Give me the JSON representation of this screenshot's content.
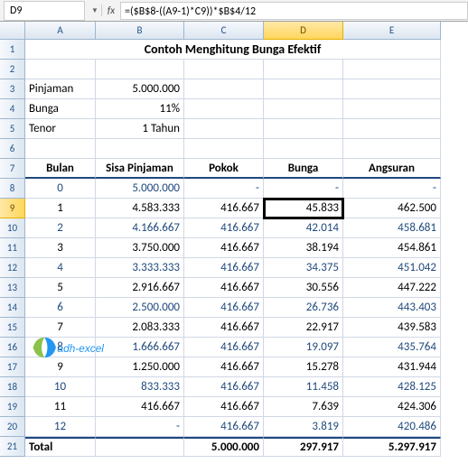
{
  "formula_bar": {
    "cell_ref": "D9",
    "fx_label": "fx",
    "formula": "=($B$8-((A9-1)*C9))*$B$4/12"
  },
  "column_headers": [
    "A",
    "B",
    "C",
    "D",
    "E"
  ],
  "selected_column": "D",
  "selected_row": "9",
  "row_numbers": [
    "1",
    "2",
    "3",
    "4",
    "5",
    "6",
    "7",
    "8",
    "9",
    "10",
    "11",
    "12",
    "13",
    "14",
    "15",
    "16",
    "17",
    "18",
    "19",
    "20",
    "21"
  ],
  "title": "Contoh Menghitung Bunga Efektif",
  "params": {
    "pinjaman_label": "Pinjaman",
    "pinjaman_value": "5.000.000",
    "bunga_label": "Bunga",
    "bunga_value": "11%",
    "tenor_label": "Tenor",
    "tenor_value": "1 Tahun"
  },
  "table": {
    "headers": {
      "bulan": "Bulan",
      "sisa": "Sisa Pinjaman",
      "pokok": "Pokok",
      "bunga": "Bunga",
      "angsuran": "Angsuran"
    },
    "rows": [
      {
        "b": "0",
        "sisa": "5.000.000",
        "pokok": "-",
        "bunga": "-",
        "ang": "-",
        "blue": true
      },
      {
        "b": "1",
        "sisa": "4.583.333",
        "pokok": "416.667",
        "bunga": "45.833",
        "ang": "462.500",
        "blue": false,
        "active": true
      },
      {
        "b": "2",
        "sisa": "4.166.667",
        "pokok": "416.667",
        "bunga": "42.014",
        "ang": "458.681",
        "blue": true
      },
      {
        "b": "3",
        "sisa": "3.750.000",
        "pokok": "416.667",
        "bunga": "38.194",
        "ang": "454.861",
        "blue": false
      },
      {
        "b": "4",
        "sisa": "3.333.333",
        "pokok": "416.667",
        "bunga": "34.375",
        "ang": "451.042",
        "blue": true
      },
      {
        "b": "5",
        "sisa": "2.916.667",
        "pokok": "416.667",
        "bunga": "30.556",
        "ang": "447.222",
        "blue": false
      },
      {
        "b": "6",
        "sisa": "2.500.000",
        "pokok": "416.667",
        "bunga": "26.736",
        "ang": "443.403",
        "blue": true
      },
      {
        "b": "7",
        "sisa": "2.083.333",
        "pokok": "416.667",
        "bunga": "22.917",
        "ang": "439.583",
        "blue": false
      },
      {
        "b": "8",
        "sisa": "1.666.667",
        "pokok": "416.667",
        "bunga": "19.097",
        "ang": "435.764",
        "blue": true
      },
      {
        "b": "9",
        "sisa": "1.250.000",
        "pokok": "416.667",
        "bunga": "15.278",
        "ang": "431.944",
        "blue": false
      },
      {
        "b": "10",
        "sisa": "833.333",
        "pokok": "416.667",
        "bunga": "11.458",
        "ang": "428.125",
        "blue": true
      },
      {
        "b": "11",
        "sisa": "416.667",
        "pokok": "416.667",
        "bunga": "7.639",
        "ang": "424.306",
        "blue": false
      },
      {
        "b": "12",
        "sisa": "-",
        "pokok": "416.667",
        "bunga": "3.819",
        "ang": "420.486",
        "blue": true
      }
    ],
    "total": {
      "label": "Total",
      "pokok": "5.000.000",
      "bunga": "297.917",
      "ang": "5.297.917"
    }
  },
  "logo_text": "adh-excel",
  "colors": {
    "blue_text": "#1f497d",
    "header_bg_top": "#f6f9fd",
    "header_bg_bot": "#dce6f1",
    "header_border": "#9eb6ce",
    "grid_line": "#d0d7e5",
    "sel_bg_top": "#ffe8a6",
    "sel_bg_bot": "#ffd65c"
  }
}
